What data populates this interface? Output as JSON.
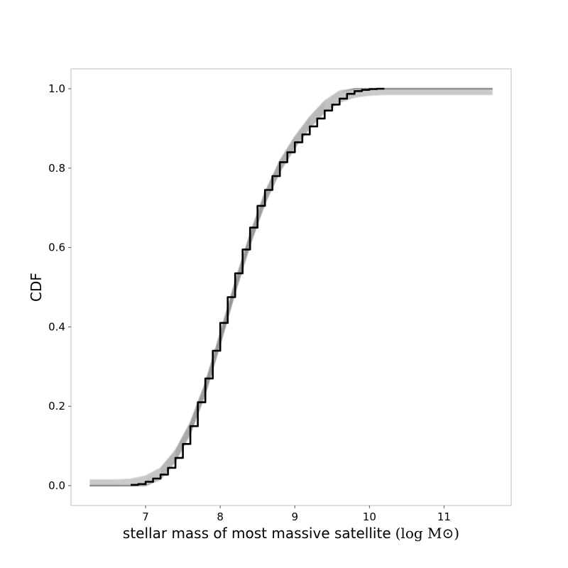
{
  "chart_data": {
    "type": "line",
    "title": "",
    "xlabel": "stellar mass of most massive satellite",
    "xlabel_unit": "(log M⊙)",
    "ylabel": "CDF",
    "xlim": [
      6.0,
      11.9
    ],
    "ylim": [
      -0.05,
      1.05
    ],
    "xticks": [
      7,
      8,
      9,
      10,
      11
    ],
    "yticks": [
      0.0,
      0.2,
      0.4,
      0.6,
      0.8,
      1.0
    ],
    "xtick_labels": [
      "7",
      "8",
      "9",
      "10",
      "11"
    ],
    "ytick_labels": [
      "0.0",
      "0.2",
      "0.4",
      "0.6",
      "0.8",
      "1.0"
    ],
    "grid": false,
    "colors": {
      "main": "#000000",
      "ensemble": "#888888",
      "frame": "#bbbbbb"
    },
    "series": [
      {
        "role": "ensemble band (many light gray curves)",
        "x_min": 6.25,
        "x_max": 11.65,
        "width_cdf": 0.03,
        "x": [
          6.25,
          6.6,
          6.8,
          7.0,
          7.2,
          7.4,
          7.6,
          7.8,
          8.0,
          8.2,
          8.4,
          8.6,
          8.8,
          9.0,
          9.2,
          9.4,
          9.6,
          9.8,
          10.0,
          10.2,
          10.6,
          11.0,
          11.65
        ],
        "y": [
          0.0,
          0.0,
          0.002,
          0.01,
          0.03,
          0.075,
          0.145,
          0.245,
          0.37,
          0.5,
          0.62,
          0.725,
          0.805,
          0.865,
          0.915,
          0.955,
          0.98,
          0.993,
          0.998,
          1.0,
          1.0,
          1.0,
          1.0
        ]
      },
      {
        "role": "main curve",
        "x": [
          6.8,
          6.9,
          7.0,
          7.1,
          7.2,
          7.3,
          7.4,
          7.5,
          7.6,
          7.7,
          7.8,
          7.9,
          8.0,
          8.1,
          8.2,
          8.3,
          8.4,
          8.5,
          8.6,
          8.7,
          8.8,
          8.9,
          9.0,
          9.1,
          9.2,
          9.3,
          9.4,
          9.5,
          9.6,
          9.7,
          9.8,
          9.9,
          10.0,
          10.1,
          10.2
        ],
        "y": [
          0.002,
          0.004,
          0.01,
          0.018,
          0.028,
          0.045,
          0.07,
          0.105,
          0.15,
          0.21,
          0.27,
          0.34,
          0.41,
          0.475,
          0.535,
          0.595,
          0.65,
          0.705,
          0.745,
          0.78,
          0.815,
          0.84,
          0.865,
          0.885,
          0.905,
          0.925,
          0.945,
          0.96,
          0.975,
          0.987,
          0.994,
          0.997,
          0.999,
          1.0,
          1.0
        ]
      }
    ]
  }
}
